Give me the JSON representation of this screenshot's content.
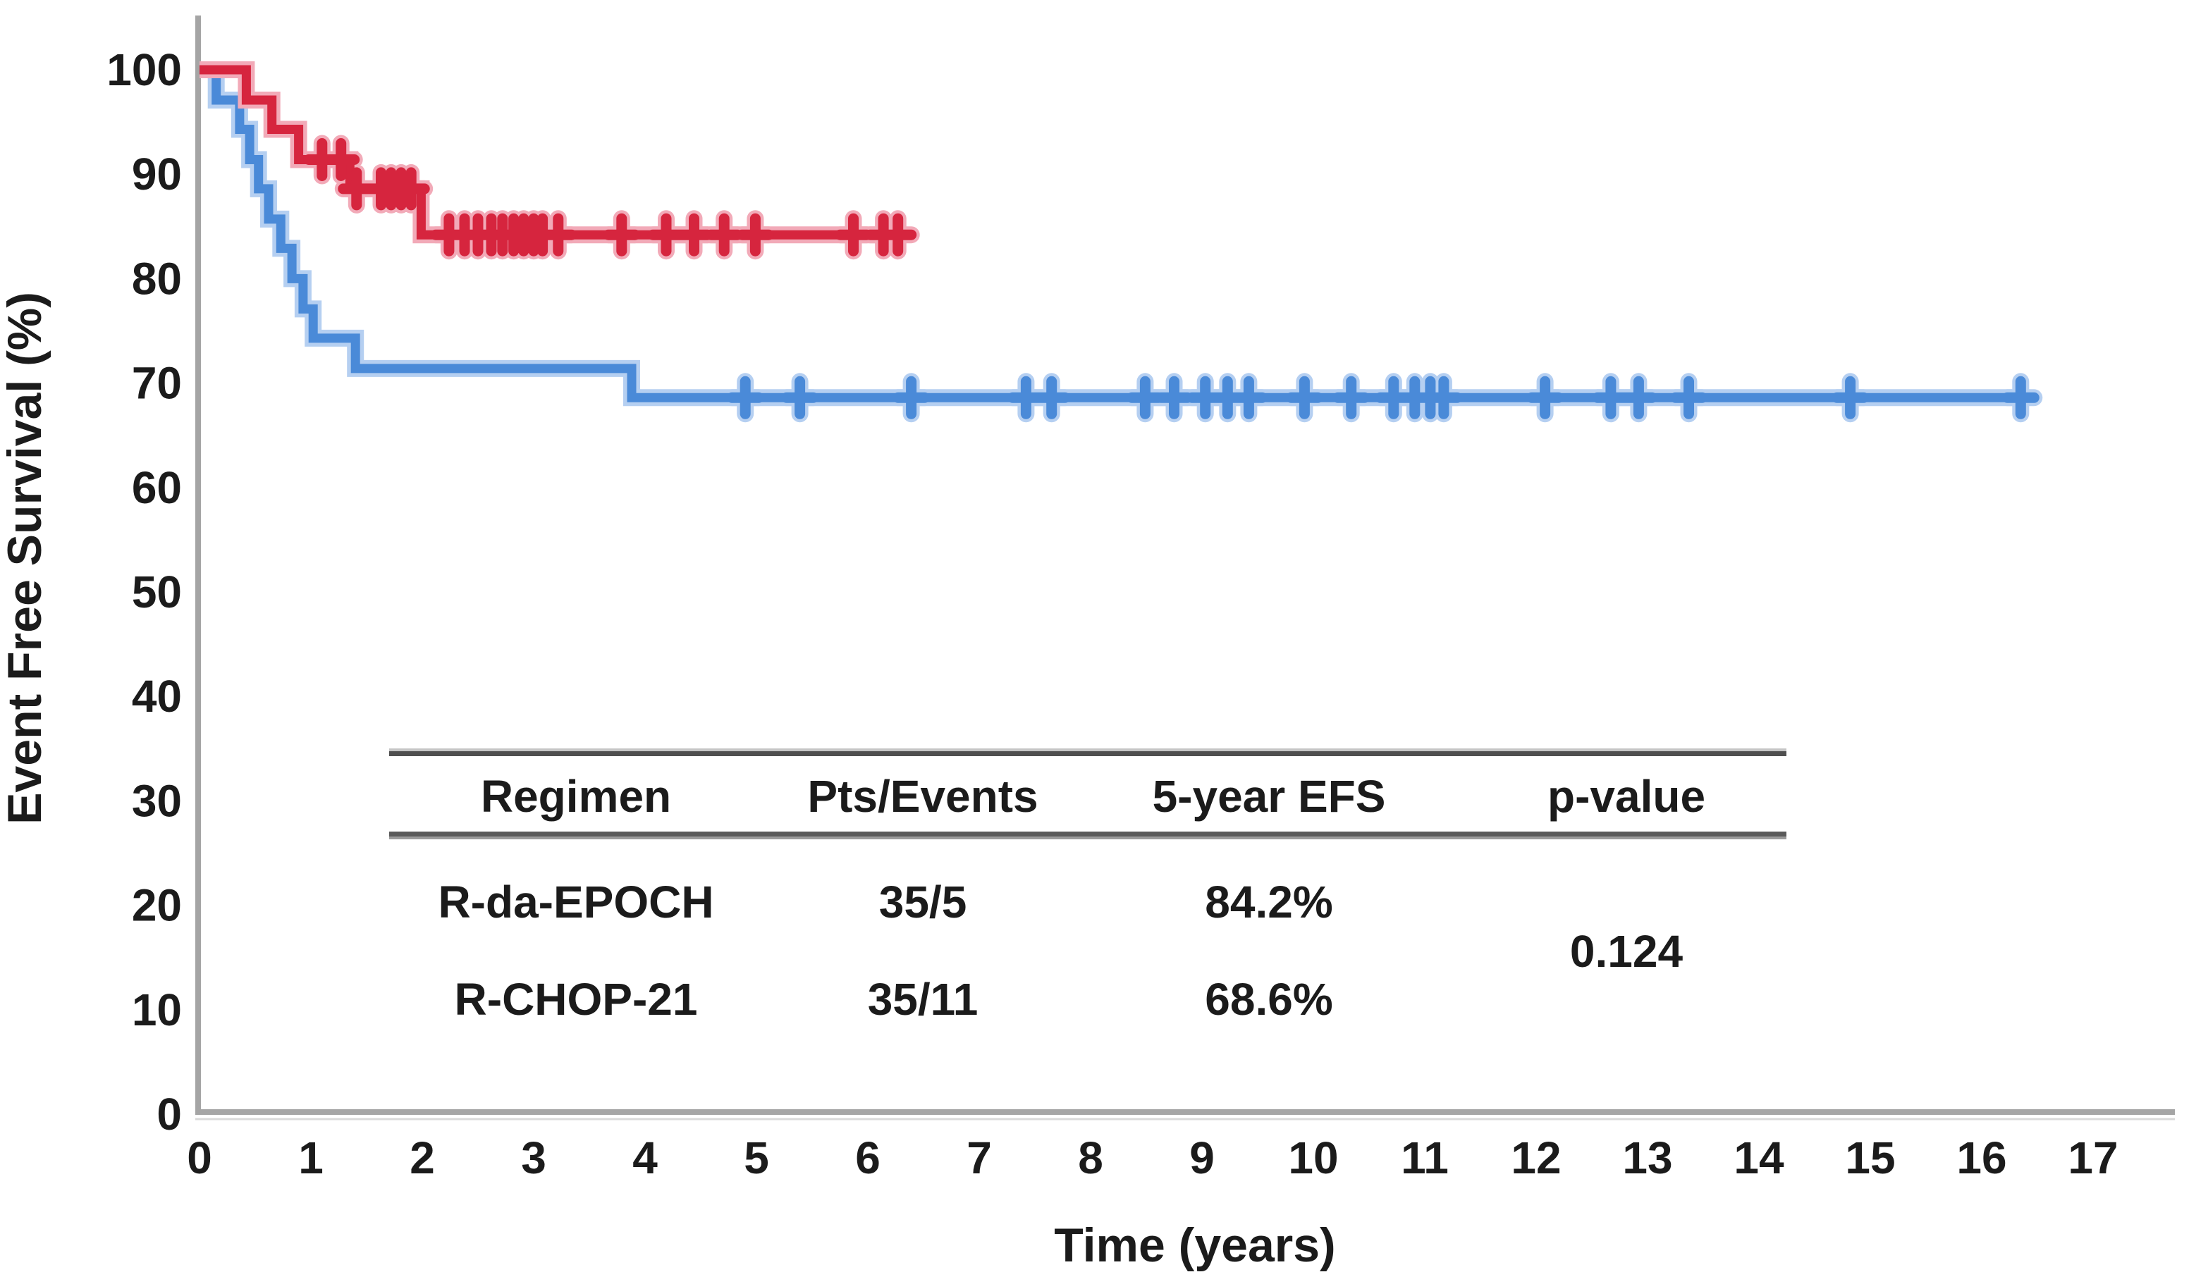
{
  "chart_data": {
    "type": "line",
    "subtype": "kaplan-meier-step",
    "title": "",
    "xlabel": "Time (years)",
    "ylabel": "Event Free Survival (%)",
    "xlim": [
      0,
      17.6
    ],
    "ylim": [
      0,
      100
    ],
    "x_ticks": [
      0,
      1,
      2,
      3,
      4,
      5,
      6,
      7,
      8,
      9,
      10,
      11,
      12,
      13,
      14,
      15,
      16,
      17
    ],
    "y_ticks": [
      0,
      10,
      20,
      30,
      40,
      50,
      60,
      70,
      80,
      90,
      100
    ],
    "grid": false,
    "legend_position": "embedded-table",
    "series": [
      {
        "name": "R-CHOP-21",
        "color": "#4a8ad8",
        "halo_color": "#b5cff1",
        "start": [
          0,
          100
        ],
        "events": [
          [
            0.15,
            97.1
          ],
          [
            0.36,
            94.3
          ],
          [
            0.45,
            91.4
          ],
          [
            0.53,
            88.6
          ],
          [
            0.62,
            85.7
          ],
          [
            0.73,
            82.9
          ],
          [
            0.83,
            80.0
          ],
          [
            0.93,
            77.1
          ],
          [
            1.02,
            74.3
          ],
          [
            1.4,
            71.4
          ],
          [
            3.88,
            68.6
          ]
        ],
        "end_time": 16.4,
        "censor_times": [
          4.9,
          5.39,
          6.39,
          7.42,
          7.65,
          8.49,
          8.75,
          9.03,
          9.23,
          9.42,
          9.92,
          10.34,
          10.72,
          10.91,
          11.05,
          11.17,
          12.08,
          12.67,
          12.92,
          13.37,
          14.82,
          16.35
        ]
      },
      {
        "name": "R-da-EPOCH",
        "color": "#d6253e",
        "halo_color": "#f2aab8",
        "start": [
          0,
          100
        ],
        "events": [
          [
            0.42,
            97.1
          ],
          [
            0.65,
            94.3
          ],
          [
            0.89,
            91.4
          ],
          [
            1.35,
            88.6
          ],
          [
            1.99,
            84.2
          ]
        ],
        "end_time": 6.27,
        "censor_times": [
          1.1,
          1.27,
          1.41,
          1.63,
          1.72,
          1.81,
          1.9,
          2.24,
          2.38,
          2.5,
          2.62,
          2.72,
          2.82,
          2.91,
          3.0,
          3.08,
          3.22,
          3.79,
          4.19,
          4.44,
          4.71,
          4.99,
          5.87,
          6.14,
          6.27
        ]
      }
    ]
  },
  "table": {
    "headers": [
      "Regimen",
      "Pts/Events",
      "5-year EFS",
      "p-value"
    ],
    "rows": [
      {
        "regimen": "R-da-EPOCH",
        "pts_events": "35/5",
        "efs": "84.2%",
        "color": "#e8252f"
      },
      {
        "regimen": "R-CHOP-21",
        "pts_events": "35/11",
        "efs": "68.6%",
        "color": "#4f97e8"
      }
    ],
    "p_value": "0.124"
  },
  "colors": {
    "axis": "#a5a5a5",
    "text": "#1b1b1b",
    "rule_dark": "#4f4f4f",
    "rule_light": "#b5b5b5"
  }
}
